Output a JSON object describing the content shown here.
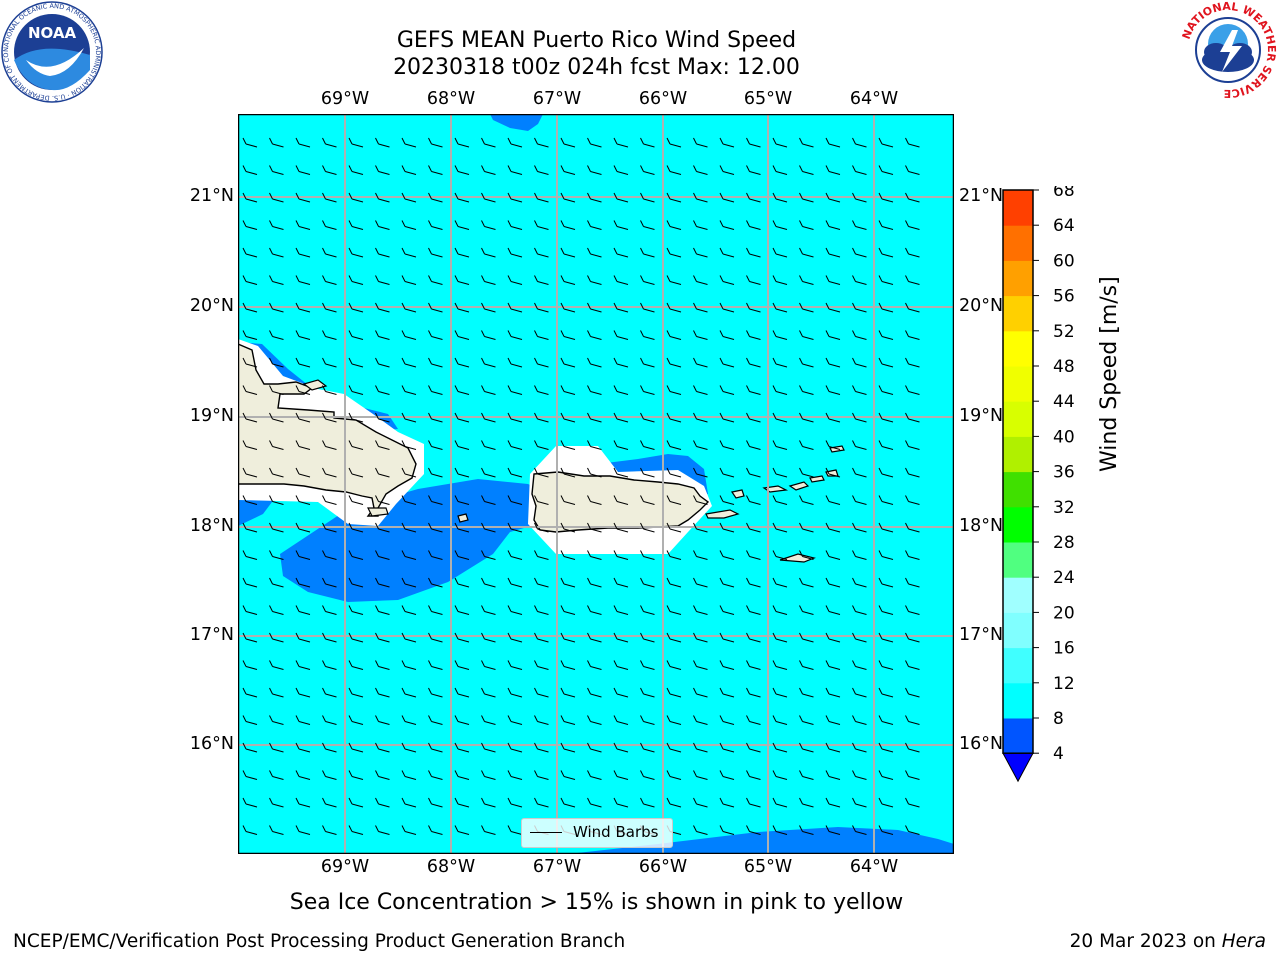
{
  "title_line1": "GEFS MEAN Puerto Rico Wind Speed",
  "title_line2": "20230318 t00z 024h fcst   Max: 12.00",
  "lon_labels": [
    "69°W",
    "68°W",
    "67°W",
    "66°W",
    "65°W",
    "64°W"
  ],
  "lat_labels": [
    "21°N",
    "20°N",
    "19°N",
    "18°N",
    "17°N",
    "16°N"
  ],
  "colorbar": {
    "label": "Wind Speed [m/s]",
    "ticks": [
      "4",
      "8",
      "12",
      "16",
      "20",
      "24",
      "28",
      "32",
      "36",
      "40",
      "44",
      "48",
      "52",
      "56",
      "60",
      "64",
      "68"
    ],
    "colors": [
      "#0055ff",
      "#00ffff",
      "#40ffff",
      "#80ffff",
      "#a0ffff",
      "#50ff80",
      "#00ff00",
      "#40e000",
      "#b0f000",
      "#d8ff00",
      "#f0ff00",
      "#ffff00",
      "#ffd000",
      "#ffa000",
      "#ff7000",
      "#ff4000",
      "#ff0000"
    ],
    "extend_color": "#0000ff"
  },
  "legend_label": "Wind Barbs",
  "caption": "Sea Ice Concentration > 15% is shown in pink to yellow",
  "footer_left": "NCEP/EMC/Verification Post Processing Product Generation Branch",
  "footer_right_date": "20 Mar 2023 on ",
  "footer_right_host": "Hera",
  "logos": {
    "noaa": {
      "text": "NOAA",
      "ring_text": "NATIONAL OCEANIC AND ATMOSPHERIC ADMINISTRATION · U.S. DEPARTMENT OF COMMERCE"
    },
    "nws": {
      "ring_text": "NATIONAL WEATHER SERVICE"
    }
  },
  "colors": {
    "ocean": "#00ffff",
    "band4": "#0080ff",
    "land": "#efeedc",
    "white_mask": "#ffffff"
  }
}
